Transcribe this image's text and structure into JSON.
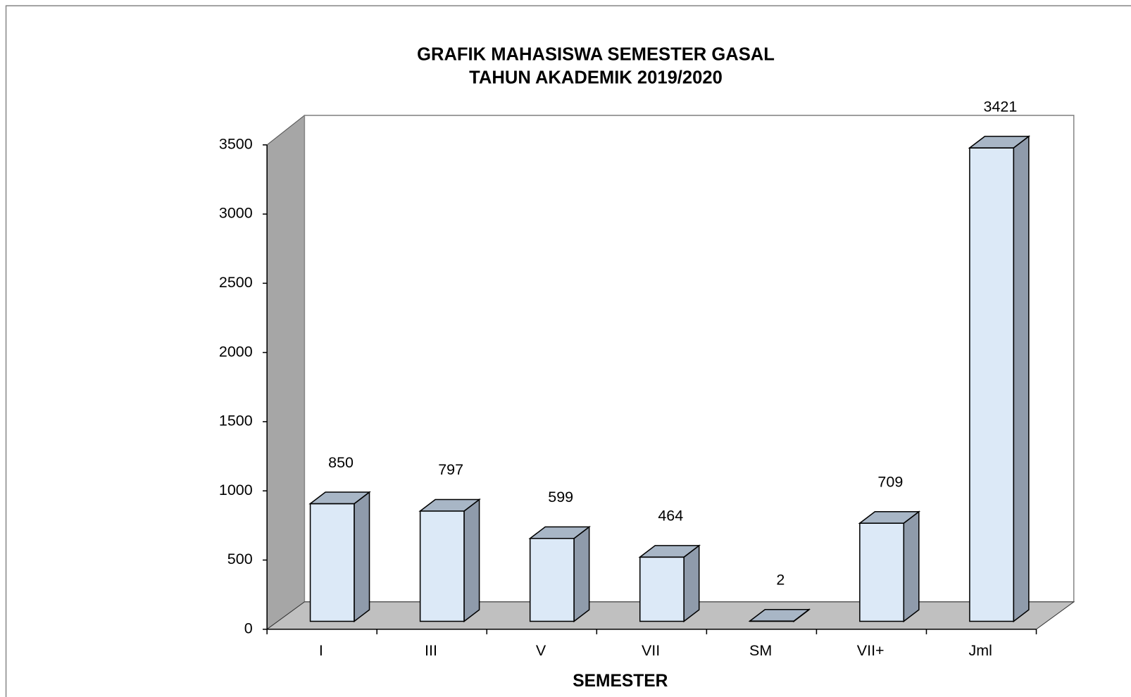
{
  "chart_data": {
    "type": "bar3d",
    "title": "GRAFIK MAHASISWA SEMESTER GASAL",
    "subtitle": "TAHUN  AKADEMIK 2019/2020",
    "x_label": "SEMESTER",
    "categories": [
      "I",
      "III",
      "V",
      "VII",
      "SM",
      "VII+",
      "Jml"
    ],
    "values": [
      850,
      797,
      599,
      464,
      2,
      709,
      3421
    ],
    "color": "#dce9f7",
    "ylim": [
      0,
      3500
    ],
    "yticks": [
      0,
      500,
      1000,
      1500,
      2000,
      2500,
      3000,
      3500
    ],
    "grid": false
  }
}
